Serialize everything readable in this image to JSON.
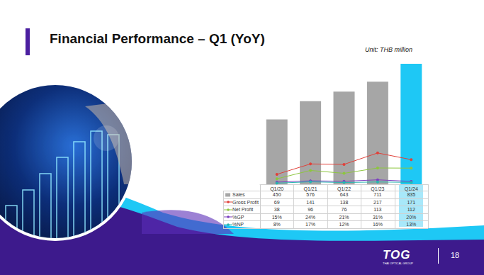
{
  "header": {
    "title": "Financial Performance – Q1 (YoY)",
    "unit": "Unit: THB million"
  },
  "chart_data": {
    "type": "bar",
    "categories": [
      "Q1/20",
      "Q1/21",
      "Q1/22",
      "Q1/23",
      "Q1/24"
    ],
    "series": [
      {
        "name": "Sales",
        "type": "bar",
        "color": "#a6a6a6",
        "colors": [
          "#a6a6a6",
          "#a6a6a6",
          "#a6a6a6",
          "#a6a6a6",
          "#1ec8f5"
        ],
        "values": [
          450,
          576,
          643,
          711,
          835
        ]
      },
      {
        "name": "Gross Profit",
        "type": "line",
        "color": "#e0413a",
        "marker": "circle",
        "values": [
          69,
          141,
          138,
          217,
          171
        ]
      },
      {
        "name": "Net Profit",
        "type": "line",
        "color": "#8dc63f",
        "marker": "circle",
        "values": [
          38,
          96,
          76,
          113,
          112
        ]
      },
      {
        "name": "%GP",
        "type": "line",
        "color": "#7b3fbf",
        "marker": "circle",
        "values": [
          15,
          24,
          21,
          31,
          20
        ],
        "value_labels": [
          "15%",
          "24%",
          "21%",
          "31%",
          "20%"
        ]
      },
      {
        "name": "%NP",
        "type": "line",
        "color": "#27b5b0",
        "marker": "circle",
        "values": [
          8,
          17,
          12,
          16,
          13
        ],
        "value_labels": [
          "8%",
          "17%",
          "12%",
          "16%",
          "13%"
        ]
      }
    ],
    "ylim": [
      0,
      850
    ],
    "yticks": [
      0,
      850
    ],
    "grid": false,
    "tick_labels": "x"
  },
  "footer": {
    "logo": "TOG",
    "logo_subtitle": "THAI OPTICAL GROUP",
    "page": "18"
  }
}
